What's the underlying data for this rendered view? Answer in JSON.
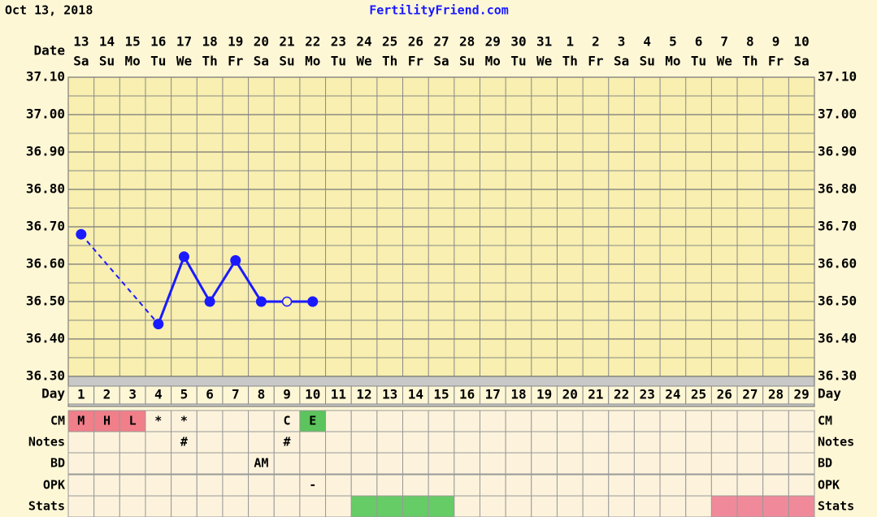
{
  "chart_data": {
    "type": "line",
    "header_date": "Oct 13, 2018",
    "site": "FertilityFriend.com",
    "date_label": "Date",
    "day_label": "Day",
    "dates": [
      "13",
      "14",
      "15",
      "16",
      "17",
      "18",
      "19",
      "20",
      "21",
      "22",
      "23",
      "24",
      "25",
      "26",
      "27",
      "28",
      "29",
      "30",
      "31",
      "1",
      "2",
      "3",
      "4",
      "5",
      "6",
      "7",
      "8",
      "9",
      "10"
    ],
    "weekdays": [
      "Sa",
      "Su",
      "Mo",
      "Tu",
      "We",
      "Th",
      "Fr",
      "Sa",
      "Su",
      "Mo",
      "Tu",
      "We",
      "Th",
      "Fr",
      "Sa",
      "Su",
      "Mo",
      "Tu",
      "We",
      "Th",
      "Fr",
      "Sa",
      "Su",
      "Mo",
      "Tu",
      "We",
      "Th",
      "Fr",
      "Sa"
    ],
    "days": [
      1,
      2,
      3,
      4,
      5,
      6,
      7,
      8,
      9,
      10,
      11,
      12,
      13,
      14,
      15,
      16,
      17,
      18,
      19,
      20,
      21,
      22,
      23,
      24,
      25,
      26,
      27,
      28,
      29
    ],
    "values": [
      36.68,
      null,
      null,
      36.44,
      36.62,
      36.5,
      36.61,
      36.5,
      36.5,
      36.5,
      null,
      null,
      null,
      null,
      null,
      null,
      null,
      null,
      null,
      null,
      null,
      null,
      null,
      null,
      null,
      null,
      null,
      null,
      null
    ],
    "point_styles": [
      "filled",
      null,
      null,
      "filled",
      "filled",
      "filled",
      "filled",
      "filled",
      "open",
      "filled",
      null,
      null,
      null,
      null,
      null,
      null,
      null,
      null,
      null,
      null,
      null,
      null,
      null,
      null,
      null,
      null,
      null,
      null,
      null
    ],
    "color": "#1a1aff",
    "gap_line": "dashed",
    "ylim": [
      36.3,
      37.1
    ],
    "yticks": [
      {
        "value": 36.3,
        "label": "36.30"
      },
      {
        "value": 36.4,
        "label": "36.40"
      },
      {
        "value": 36.5,
        "label": "36.50"
      },
      {
        "value": 36.6,
        "label": "36.60"
      },
      {
        "value": 36.7,
        "label": "36.70"
      },
      {
        "value": 36.8,
        "label": "36.80"
      },
      {
        "value": 36.9,
        "label": "36.90"
      },
      {
        "value": 37.0,
        "label": "37.00"
      },
      {
        "value": 37.1,
        "label": "37.10"
      }
    ],
    "minor_yticks": [
      36.35,
      36.45,
      36.55,
      36.65,
      36.75,
      36.85,
      36.95,
      37.05
    ],
    "grid": true,
    "rows": [
      {
        "label": "CM",
        "cells": [
          "M",
          "H",
          "L",
          "*",
          "*",
          null,
          null,
          null,
          "C",
          "E",
          null,
          null,
          null,
          null,
          null,
          null,
          null,
          null,
          null,
          null,
          null,
          null,
          null,
          null,
          null,
          null,
          null,
          null,
          null
        ],
        "colors": [
          "#f07f8a",
          "#f07f8a",
          "#f07f8a",
          null,
          null,
          null,
          null,
          null,
          null,
          "#5cc45c",
          null,
          null,
          null,
          null,
          null,
          null,
          null,
          null,
          null,
          null,
          null,
          null,
          null,
          null,
          null,
          null,
          null,
          null,
          null
        ]
      },
      {
        "label": "Notes",
        "cells": [
          null,
          null,
          null,
          null,
          "#",
          null,
          null,
          null,
          "#",
          null,
          null,
          null,
          null,
          null,
          null,
          null,
          null,
          null,
          null,
          null,
          null,
          null,
          null,
          null,
          null,
          null,
          null,
          null,
          null
        ]
      },
      {
        "label": "BD",
        "cells": [
          null,
          null,
          null,
          null,
          null,
          null,
          null,
          "AM",
          null,
          null,
          null,
          null,
          null,
          null,
          null,
          null,
          null,
          null,
          null,
          null,
          null,
          null,
          null,
          null,
          null,
          null,
          null,
          null,
          null
        ]
      },
      {
        "label": "OPK",
        "cells": [
          null,
          null,
          null,
          null,
          null,
          null,
          null,
          null,
          null,
          "-",
          null,
          null,
          null,
          null,
          null,
          null,
          null,
          null,
          null,
          null,
          null,
          null,
          null,
          null,
          null,
          null,
          null,
          null,
          null
        ]
      },
      {
        "label": "Stats",
        "colors": [
          null,
          null,
          null,
          null,
          null,
          null,
          null,
          null,
          null,
          null,
          null,
          "#66cc66",
          "#66cc66",
          "#66cc66",
          "#66cc66",
          null,
          null,
          null,
          null,
          null,
          null,
          null,
          null,
          null,
          null,
          "#f08a9a",
          "#f08a9a",
          "#f08a9a",
          "#f08a9a"
        ]
      }
    ]
  }
}
